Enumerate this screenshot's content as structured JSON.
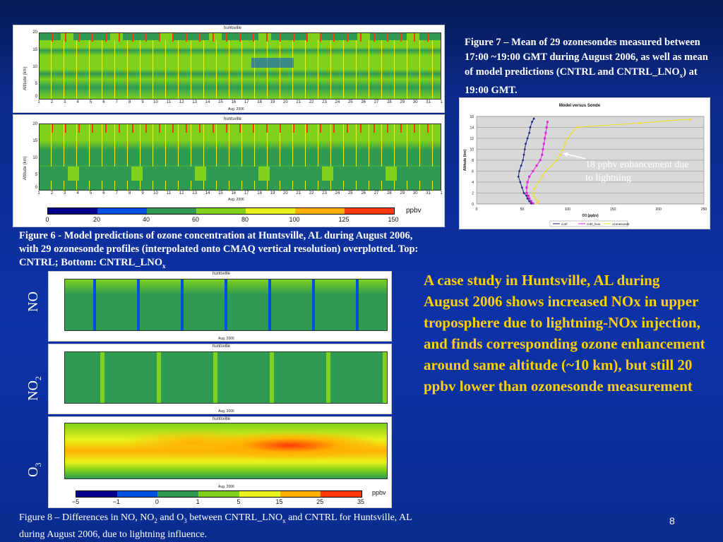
{
  "figure7_caption": {
    "pre": "Figure  7 – Mean of 29 ozonesondes measured between 17:00 ~19:00 GMT during August 2006, as well as mean of model predictions (CNTRL and CNTRL_LNO",
    "sub": "x",
    "post": ") at 19:00 GMT."
  },
  "figure6_caption": {
    "pre": "Figure 6 - Model predictions of ozone concentration at Huntsville, AL during August 2006, with 29 ozonesonde profiles (interpolated onto CMAQ vertical resolution) overplotted. Top: CNTRL; Bottom: CNTRL_LNO",
    "sub": "x"
  },
  "figure8_caption": {
    "a": "Figure 8 – Differences in NO, NO",
    "sub1": "2",
    "b": " and O",
    "sub2": "3",
    "c": " between CNTRL_LNO",
    "sub3": "x",
    "d": " and CNTRL for Huntsville, AL during August 2006, due to lightning influence."
  },
  "key_message": "A case study in Huntsville, AL during August 2006 shows increased NOx in upper troposphere due to lightning-NOx injection, and finds corresponding ozone enhancement around same altitude (~10 km), but still 20 ppbv lower than ozonesonde measurement",
  "slide_number": "8",
  "heatmap_common": {
    "site": "huntsville",
    "ylabel": "Altitude (km)",
    "xlabel": "Aug. 2006",
    "yticks": [
      "20",
      "15",
      "10",
      "5",
      "0"
    ],
    "days": [
      "1",
      "2",
      "3",
      "4",
      "5",
      "6",
      "7",
      "8",
      "9",
      "10",
      "11",
      "12",
      "13",
      "14",
      "15",
      "16",
      "17",
      "18",
      "19",
      "20",
      "21",
      "22",
      "23",
      "24",
      "25",
      "26",
      "27",
      "28",
      "29",
      "30",
      "31",
      "1"
    ]
  },
  "side_labels": {
    "no": "NO",
    "no2_main": "NO",
    "no2_sub": "2",
    "o3_main": "O",
    "o3_sub": "3"
  },
  "colorbar_top": {
    "labels": [
      "0",
      "20",
      "40",
      "60",
      "80",
      "100",
      "125",
      "150"
    ],
    "unit": "ppbv",
    "colors": [
      "#00008b",
      "#0050e0",
      "#2e9a52",
      "#7fd11b",
      "#e9f21c",
      "#ffb000",
      "#ff3a0a"
    ]
  },
  "colorbar_bottom": {
    "labels": [
      "−5",
      "−1",
      "0",
      "1",
      "5",
      "15",
      "25",
      "35"
    ],
    "unit": "ppbv",
    "colors": [
      "#00008b",
      "#0050e0",
      "#2e9a52",
      "#7fd11b",
      "#e9f21c",
      "#ffb000",
      "#ff3a0a"
    ]
  },
  "annotation": {
    "text": "18 ppbv enhancement due to lightning"
  },
  "chart_data": {
    "type": "line",
    "title": "Model versus Sonde",
    "xlabel": "O3 (ppbv)",
    "ylabel": "Altitude (km)",
    "xlim": [
      0,
      250
    ],
    "ylim": [
      0,
      16
    ],
    "xticks": [
      "0",
      "50",
      "100",
      "150",
      "200",
      "250"
    ],
    "yticks": [
      "0",
      "2",
      "4",
      "6",
      "8",
      "10",
      "12",
      "14",
      "16"
    ],
    "grid": true,
    "legend": "bottom",
    "series": [
      {
        "name": "cntrl",
        "color": "#1a237e",
        "marker": "diamond",
        "points": [
          [
            60,
            0.1
          ],
          [
            58,
            0.5
          ],
          [
            56,
            1
          ],
          [
            55,
            1.5
          ],
          [
            52,
            2
          ],
          [
            50,
            3
          ],
          [
            48,
            4
          ],
          [
            46,
            5
          ],
          [
            47,
            6
          ],
          [
            49,
            7
          ],
          [
            51,
            8
          ],
          [
            52,
            9
          ],
          [
            53,
            10
          ],
          [
            54,
            11
          ],
          [
            56,
            12
          ],
          [
            58,
            13
          ],
          [
            59,
            14
          ],
          [
            61,
            15
          ],
          [
            63,
            15.6
          ]
        ]
      },
      {
        "name": "cntrl_lnox",
        "color": "#e020e0",
        "marker": "square",
        "points": [
          [
            62,
            0.1
          ],
          [
            60,
            0.5
          ],
          [
            58,
            1
          ],
          [
            57,
            1.5
          ],
          [
            55,
            2
          ],
          [
            55,
            3
          ],
          [
            56,
            4
          ],
          [
            58,
            5
          ],
          [
            62,
            6
          ],
          [
            66,
            7
          ],
          [
            70,
            8
          ],
          [
            72,
            9
          ],
          [
            73,
            10
          ],
          [
            74,
            11
          ],
          [
            75,
            12
          ],
          [
            76,
            13
          ],
          [
            77,
            14
          ],
          [
            78,
            15
          ]
        ]
      },
      {
        "name": "ozonesonde",
        "color": "#f0e020",
        "marker": "triangle",
        "points": [
          [
            66,
            0.1
          ],
          [
            68,
            0.5
          ],
          [
            65,
            1
          ],
          [
            63,
            1.5
          ],
          [
            62,
            2
          ],
          [
            64,
            3
          ],
          [
            68,
            4
          ],
          [
            72,
            5
          ],
          [
            76,
            6
          ],
          [
            82,
            7
          ],
          [
            88,
            8
          ],
          [
            92,
            9
          ],
          [
            95,
            10
          ],
          [
            97,
            11
          ],
          [
            100,
            12
          ],
          [
            105,
            13
          ],
          [
            110,
            14
          ],
          [
            180,
            14.8
          ],
          [
            235,
            15.5
          ]
        ]
      }
    ]
  }
}
